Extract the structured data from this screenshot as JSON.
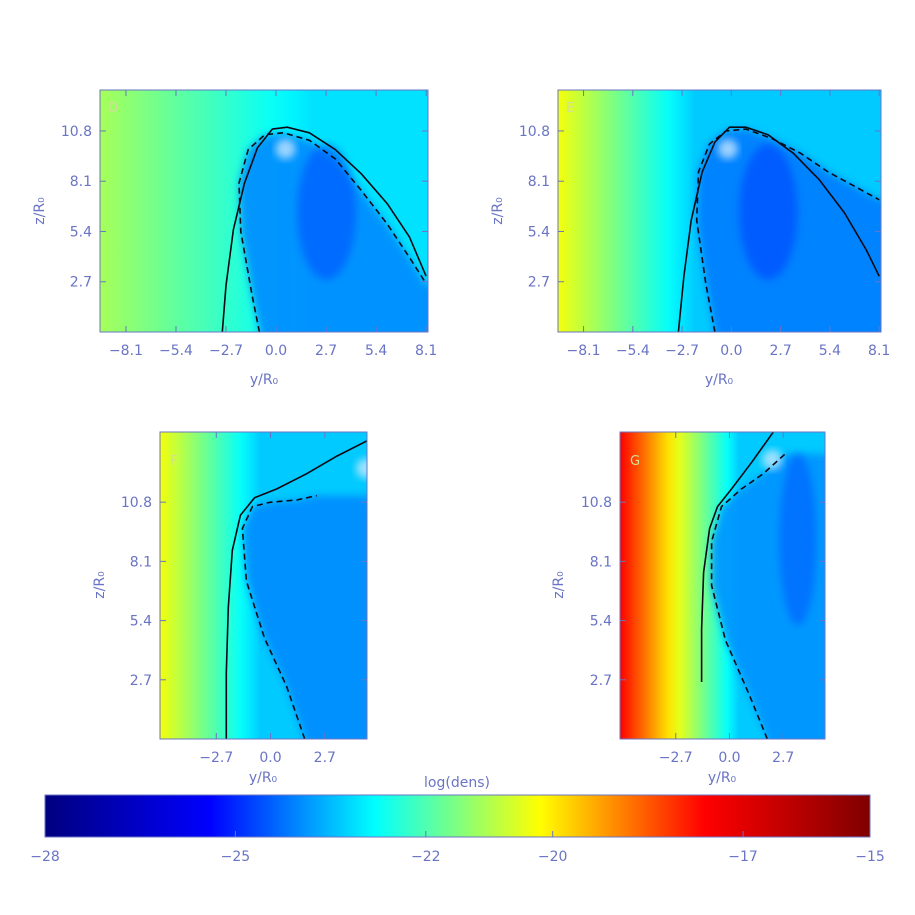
{
  "chart_data": [
    {
      "type": "heatmap",
      "panel_label": "D",
      "xlabel": "y/R₀",
      "ylabel": "z/R₀",
      "xlim": [
        -9.5,
        8.2
      ],
      "ylim": [
        0.0,
        13.0
      ],
      "xticks": [
        "-8.1",
        "-5.4",
        "-2.7",
        "0.0",
        "2.7",
        "5.4",
        "8.1"
      ],
      "yticks": [
        "2.7",
        "5.4",
        "8.1",
        "10.8"
      ],
      "field": {
        "bg_left": -21.0,
        "bg_right": -23.5,
        "bg_grad_end": 2.0,
        "cavity": -24.6
      },
      "series": [
        {
          "style": "solid",
          "x": [
            -2.9,
            -2.7,
            -2.3,
            -1.7,
            -1.0,
            -0.2,
            0.6,
            1.8,
            3.2,
            4.6,
            6.0,
            7.2,
            8.1
          ],
          "y": [
            0.0,
            2.5,
            5.5,
            8.0,
            9.9,
            10.9,
            11.0,
            10.7,
            9.8,
            8.5,
            6.9,
            5.1,
            3.0
          ]
        },
        {
          "style": "dashed",
          "x": [
            -0.9,
            -1.3,
            -1.9,
            -2.0,
            -1.5,
            -0.6,
            0.4,
            1.8,
            3.2,
            4.6,
            6.0,
            7.2,
            8.1
          ],
          "y": [
            0.0,
            2.0,
            5.4,
            8.0,
            9.8,
            10.6,
            10.7,
            10.3,
            9.3,
            7.6,
            5.8,
            4.0,
            2.6
          ]
        }
      ]
    },
    {
      "type": "heatmap",
      "panel_label": "E",
      "xlabel": "y/R₀",
      "ylabel": "z/R₀",
      "xlim": [
        -9.5,
        8.2
      ],
      "ylim": [
        0.0,
        13.0
      ],
      "xticks": [
        "-8.1",
        "-5.4",
        "-2.7",
        "0.0",
        "2.7",
        "5.4",
        "8.1"
      ],
      "yticks": [
        "2.7",
        "5.4",
        "8.1",
        "10.8"
      ],
      "field": {
        "bg_left": -20.0,
        "bg_right": -23.8,
        "bg_grad_end": -2.0,
        "cavity": -24.8
      },
      "series": [
        {
          "style": "solid",
          "x": [
            -2.9,
            -2.6,
            -2.2,
            -1.6,
            -0.9,
            -0.1,
            0.8,
            2.0,
            3.4,
            4.8,
            6.2,
            7.4,
            8.1
          ],
          "y": [
            0.0,
            3.0,
            6.0,
            8.6,
            10.2,
            11.0,
            11.0,
            10.6,
            9.6,
            8.2,
            6.4,
            4.4,
            3.0
          ]
        },
        {
          "style": "dashed",
          "x": [
            -0.9,
            -1.4,
            -1.9,
            -1.8,
            -1.2,
            -0.3,
            0.8,
            2.2,
            3.8,
            5.3,
            6.8,
            8.1
          ],
          "y": [
            0.0,
            2.6,
            6.0,
            8.6,
            10.1,
            10.8,
            10.9,
            10.4,
            9.6,
            8.6,
            7.8,
            7.1
          ]
        }
      ]
    },
    {
      "type": "heatmap",
      "panel_label": "F",
      "xlabel": "y/R₀",
      "ylabel": "z/R₀",
      "xlim": [
        -5.5,
        4.8
      ],
      "ylim": [
        0.0,
        14.0
      ],
      "xticks": [
        "-2.7",
        "0.0",
        "2.7"
      ],
      "yticks": [
        "2.7",
        "5.4",
        "8.1",
        "10.8"
      ],
      "field": {
        "bg_left": -20.0,
        "bg_right": -23.8,
        "bg_grad_end": -0.5,
        "cavity": -24.6
      },
      "series": [
        {
          "style": "solid",
          "x": [
            -2.2,
            -2.2,
            -2.1,
            -1.9,
            -1.5,
            -0.8,
            0.3,
            1.8,
            3.3,
            4.8
          ],
          "y": [
            0.0,
            3.0,
            6.0,
            8.6,
            10.2,
            11.0,
            11.4,
            12.1,
            12.9,
            13.6
          ]
        },
        {
          "style": "dashed",
          "x": [
            1.7,
            0.8,
            -0.3,
            -1.2,
            -1.4,
            -0.9,
            0.0,
            1.3,
            2.3
          ],
          "y": [
            0.0,
            2.4,
            4.6,
            7.2,
            9.6,
            10.6,
            10.8,
            10.9,
            11.1
          ]
        }
      ]
    },
    {
      "type": "heatmap",
      "panel_label": "G",
      "xlabel": "y/R₀",
      "ylabel": "z/R₀",
      "xlim": [
        -5.5,
        4.8
      ],
      "ylim": [
        0.0,
        14.0
      ],
      "xticks": [
        "-2.7",
        "0.0",
        "2.7"
      ],
      "yticks": [
        "2.7",
        "5.4",
        "8.1",
        "10.8"
      ],
      "field": {
        "bg_left": -16.6,
        "bg_right": -23.8,
        "bg_grad_end": 0.5,
        "cavity": -24.5
      },
      "series": [
        {
          "style": "solid",
          "x": [
            -1.4,
            -1.4,
            -1.3,
            -1.0,
            -0.6,
            0.1,
            1.1,
            2.2
          ],
          "y": [
            2.6,
            5.0,
            7.6,
            9.6,
            10.6,
            11.4,
            12.6,
            14.0
          ]
        },
        {
          "style": "dashed",
          "x": [
            1.9,
            1.0,
            -0.2,
            -0.9,
            -0.9,
            -0.4,
            0.6,
            1.7,
            2.8
          ],
          "y": [
            0.0,
            2.0,
            4.5,
            7.0,
            9.0,
            10.6,
            11.4,
            12.1,
            13.0
          ]
        }
      ]
    }
  ],
  "colorbar": {
    "title": "log(dens)",
    "range": [
      -28,
      -15
    ],
    "ticks": [
      -28,
      -25,
      -22,
      -20,
      -17,
      -15
    ],
    "tick_labels": [
      "−28",
      "−25",
      "−22",
      "−20",
      "−17",
      "−15"
    ],
    "colormap": [
      "#00007f",
      "#0000ff",
      "#00ffff",
      "#ffff00",
      "#ff0000",
      "#7f0000"
    ]
  }
}
